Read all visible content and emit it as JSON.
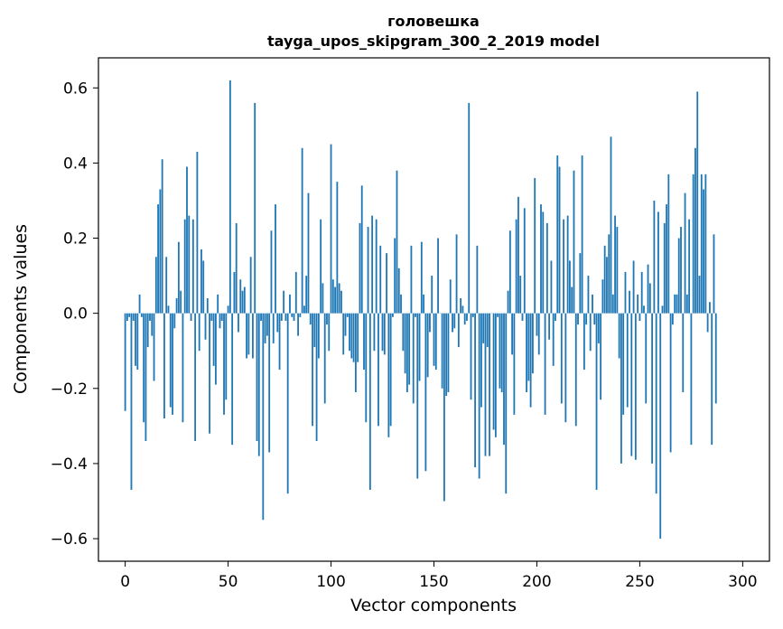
{
  "chart_data": {
    "type": "bar",
    "title_line1": "головешка",
    "title_line2": "tayga_upos_skipgram_300_2_2019 model",
    "xlabel": "Vector components",
    "ylabel": "Components values",
    "xlim": [
      -13,
      313
    ],
    "ylim": [
      -0.66,
      0.68
    ],
    "x_ticks": [
      0,
      50,
      100,
      150,
      200,
      250,
      300
    ],
    "y_ticks": [
      -0.6,
      -0.4,
      -0.2,
      0.0,
      0.2,
      0.4,
      0.6
    ],
    "x_tick_labels": [
      "0",
      "50",
      "100",
      "150",
      "200",
      "250",
      "300"
    ],
    "y_tick_labels": [
      "−0.6",
      "−0.4",
      "−0.2",
      "0.0",
      "0.2",
      "0.4",
      "0.6"
    ],
    "bar_color": "#1f77b4",
    "grid": false,
    "values": [
      -0.26,
      -0.02,
      -0.01,
      -0.47,
      -0.02,
      -0.14,
      -0.15,
      0.05,
      -0.01,
      -0.29,
      -0.34,
      -0.09,
      -0.02,
      -0.06,
      -0.18,
      0.15,
      0.29,
      0.33,
      0.41,
      -0.28,
      0.15,
      0.02,
      -0.25,
      -0.27,
      -0.04,
      0.04,
      0.19,
      0.06,
      -0.29,
      0.25,
      0.39,
      0.26,
      -0.02,
      0.25,
      -0.34,
      0.43,
      -0.1,
      0.17,
      0.14,
      -0.07,
      0.04,
      -0.32,
      -0.02,
      -0.14,
      -0.19,
      0.05,
      -0.04,
      -0.02,
      -0.27,
      -0.23,
      0.02,
      0.62,
      -0.35,
      0.11,
      0.24,
      -0.05,
      0.09,
      0.06,
      0.07,
      -0.12,
      -0.11,
      0.15,
      -0.12,
      0.56,
      -0.34,
      -0.38,
      -0.02,
      -0.55,
      -0.08,
      -0.06,
      -0.37,
      0.22,
      -0.08,
      0.29,
      -0.05,
      -0.15,
      -0.02,
      0.06,
      -0.02,
      -0.48,
      0.05,
      -0.01,
      -0.02,
      0.11,
      -0.06,
      -0.01,
      0.44,
      0.02,
      0.1,
      0.32,
      -0.03,
      -0.3,
      -0.09,
      -0.34,
      -0.12,
      0.25,
      0.08,
      -0.24,
      -0.03,
      -0.1,
      0.45,
      0.09,
      0.07,
      0.35,
      0.08,
      0.06,
      -0.11,
      -0.06,
      -0.01,
      -0.1,
      -0.12,
      -0.13,
      -0.21,
      -0.13,
      0.24,
      0.34,
      -0.15,
      -0.29,
      0.23,
      -0.47,
      0.26,
      -0.1,
      0.25,
      -0.3,
      0.18,
      -0.1,
      -0.11,
      0.16,
      -0.33,
      -0.3,
      -0.01,
      0.2,
      0.38,
      0.12,
      0.05,
      -0.1,
      -0.16,
      -0.21,
      -0.19,
      0.18,
      -0.24,
      -0.01,
      -0.44,
      -0.18,
      0.19,
      0.05,
      -0.42,
      -0.17,
      -0.05,
      0.1,
      -0.14,
      -0.15,
      0.2,
      0.0,
      -0.2,
      -0.5,
      -0.22,
      -0.21,
      0.09,
      -0.05,
      -0.04,
      0.21,
      -0.09,
      0.04,
      0.02,
      -0.03,
      -0.02,
      0.56,
      -0.23,
      -0.01,
      -0.41,
      0.18,
      -0.44,
      -0.25,
      -0.08,
      -0.38,
      -0.09,
      -0.38,
      0.0,
      -0.31,
      -0.33,
      -0.01,
      -0.2,
      -0.21,
      -0.35,
      -0.48,
      0.06,
      0.22,
      -0.11,
      -0.27,
      0.25,
      0.31,
      0.1,
      -0.02,
      0.28,
      -0.21,
      -0.18,
      -0.25,
      -0.16,
      0.36,
      -0.06,
      -0.11,
      0.29,
      0.27,
      -0.27,
      0.24,
      -0.07,
      0.14,
      -0.14,
      -0.02,
      0.42,
      0.39,
      -0.24,
      0.25,
      -0.29,
      0.26,
      0.14,
      0.07,
      0.38,
      -0.3,
      -0.03,
      0.16,
      0.42,
      -0.15,
      -0.03,
      0.1,
      -0.1,
      0.05,
      -0.03,
      -0.47,
      -0.08,
      -0.23,
      0.09,
      0.18,
      0.15,
      0.21,
      0.47,
      0.05,
      0.26,
      0.23,
      -0.12,
      -0.4,
      -0.27,
      0.11,
      -0.25,
      0.06,
      -0.38,
      0.14,
      -0.39,
      0.05,
      -0.02,
      0.11,
      0.02,
      -0.24,
      0.13,
      0.08,
      -0.4,
      0.3,
      -0.48,
      0.27,
      -0.6,
      0.02,
      0.24,
      0.29,
      0.37,
      -0.37,
      -0.03,
      0.05,
      0.05,
      0.2,
      0.23,
      -0.21,
      0.32,
      0.05,
      0.25,
      -0.35,
      0.37,
      0.44,
      0.59,
      0.1,
      0.37,
      0.33,
      0.37,
      -0.05,
      0.03,
      -0.35,
      0.21,
      -0.24
    ]
  }
}
